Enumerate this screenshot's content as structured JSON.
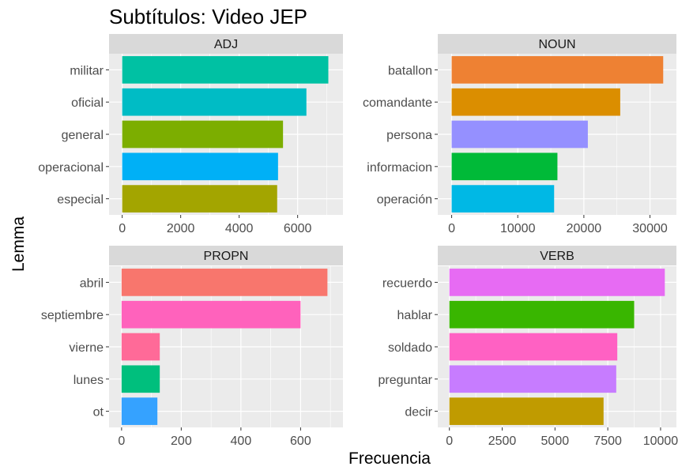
{
  "chart_data": {
    "type": "bar",
    "orientation": "horizontal",
    "title": "Subtítulos: Video JEP",
    "xlabel": "Frecuencia",
    "ylabel": "Lemma",
    "grid": true,
    "legend": "none",
    "facets": [
      {
        "name": "ADJ",
        "categories": [
          "militar",
          "oficial",
          "general",
          "operacional",
          "especial"
        ],
        "values": [
          7050,
          6300,
          5500,
          5330,
          5300
        ],
        "colors": [
          "#00C1A3",
          "#00BCC5",
          "#7CAE00",
          "#00B0F6",
          "#A3A500"
        ],
        "xlim": [
          -450,
          7550
        ],
        "xticks": [
          0,
          2000,
          4000,
          6000
        ]
      },
      {
        "name": "NOUN",
        "categories": [
          "batallon",
          "comandante",
          "persona",
          "informacion",
          "operación"
        ],
        "values": [
          32000,
          25500,
          20600,
          16000,
          15500
        ],
        "colors": [
          "#EE8133",
          "#DB8E00",
          "#9590FF",
          "#00BA38",
          "#00B8E5"
        ],
        "xlim": [
          -2100,
          34000
        ],
        "xticks": [
          0,
          10000,
          20000,
          30000
        ]
      },
      {
        "name": "PROPN",
        "categories": [
          "abril",
          "septiembre",
          "vierne",
          "lunes",
          "ot"
        ],
        "values": [
          690,
          600,
          128,
          128,
          120
        ],
        "colors": [
          "#F8766D",
          "#FF62BC",
          "#FF6A98",
          "#00BF7D",
          "#35A2FF"
        ],
        "xlim": [
          -42,
          742
        ],
        "xticks": [
          0,
          200,
          400,
          600
        ]
      },
      {
        "name": "VERB",
        "categories": [
          "recuerdo",
          "hablar",
          "soldado",
          "preguntar",
          "decir"
        ],
        "values": [
          10200,
          8750,
          7950,
          7900,
          7300
        ],
        "colors": [
          "#E76BF3",
          "#39B600",
          "#FF61C3",
          "#C77CFF",
          "#C09B00"
        ],
        "xlim": [
          -550,
          10750
        ],
        "xticks": [
          0,
          2500,
          5000,
          7500,
          10000
        ]
      }
    ]
  }
}
